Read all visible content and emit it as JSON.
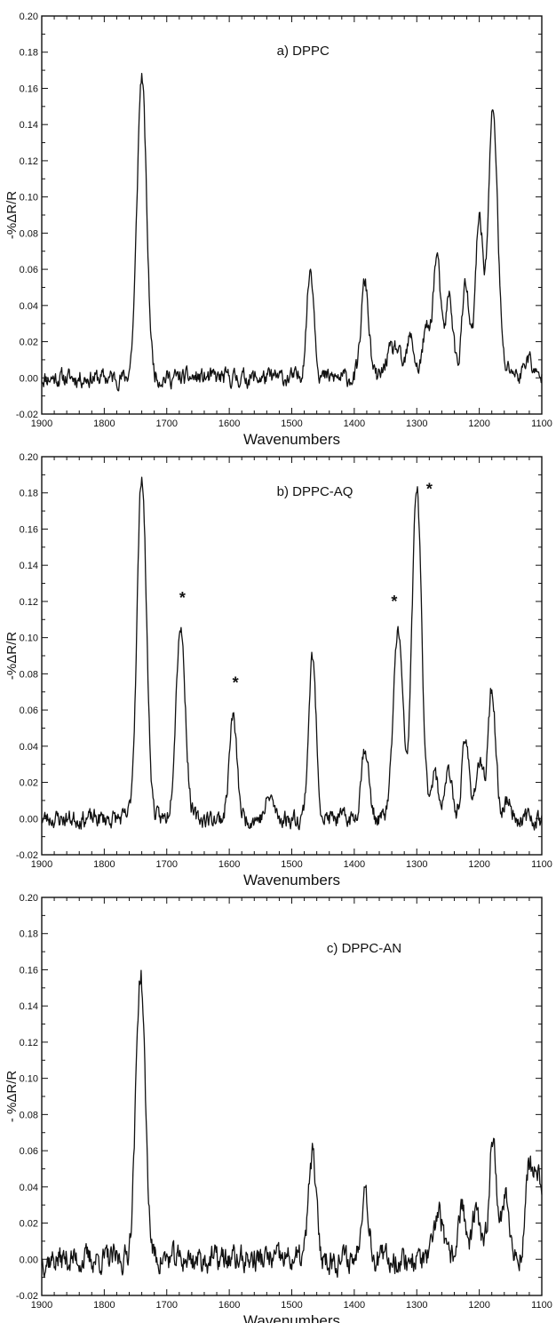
{
  "chart_data": [
    {
      "type": "line",
      "title": "a) DPPC",
      "xlabel": "Wavenumbers",
      "ylabel": "-%ΔR/R",
      "xlim": [
        1900,
        1100
      ],
      "ylim": [
        -0.02,
        0.2
      ],
      "xticks": [
        "1900",
        "1800",
        "1700",
        "1600",
        "1500",
        "1400",
        "1300",
        "1200",
        "1100"
      ],
      "yticks": [
        "-0.02",
        "0.00",
        "0.02",
        "0.04",
        "0.06",
        "0.08",
        "0.10",
        "0.12",
        "0.14",
        "0.16",
        "0.18",
        "0.20"
      ],
      "annotations": [],
      "series": [
        {
          "peaks": [
            [
              1740,
              0.167
            ],
            [
              1470,
              0.06
            ],
            [
              1383,
              0.053
            ],
            [
              1345,
              0.012
            ],
            [
              1332,
              0.015
            ],
            [
              1310,
              0.022
            ],
            [
              1285,
              0.026
            ],
            [
              1268,
              0.067
            ],
            [
              1248,
              0.045
            ],
            [
              1222,
              0.05
            ],
            [
              1200,
              0.088
            ],
            [
              1178,
              0.148
            ],
            [
              1150,
              0.005
            ],
            [
              1122,
              0.012
            ]
          ],
          "noise": 0.004,
          "seed": 11
        }
      ]
    },
    {
      "type": "line",
      "title": "b)  DPPC-AQ",
      "xlabel": "Wavenumbers",
      "ylabel": "-%ΔR/R",
      "xlim": [
        1900,
        1100
      ],
      "ylim": [
        -0.02,
        0.2
      ],
      "xticks": [
        "1900",
        "1800",
        "1700",
        "1600",
        "1500",
        "1400",
        "1300",
        "1200",
        "1100"
      ],
      "yticks": [
        "-0.02",
        "0.00",
        "0.02",
        "0.04",
        "0.06",
        "0.08",
        "0.10",
        "0.12",
        "0.14",
        "0.16",
        "0.18",
        "0.20"
      ],
      "annotations": [
        {
          "text": "*",
          "x": 1675,
          "y": 0.122
        },
        {
          "text": "*",
          "x": 1590,
          "y": 0.075
        },
        {
          "text": "*",
          "x": 1336,
          "y": 0.12
        },
        {
          "text": "*",
          "x": 1280,
          "y": 0.182
        }
      ],
      "series": [
        {
          "peaks": [
            [
              1740,
              0.19
            ],
            [
              1678,
              0.107
            ],
            [
              1594,
              0.056
            ],
            [
              1535,
              0.012
            ],
            [
              1467,
              0.089
            ],
            [
              1383,
              0.04
            ],
            [
              1330,
              0.104
            ],
            [
              1300,
              0.183
            ],
            [
              1272,
              0.025
            ],
            [
              1250,
              0.025
            ],
            [
              1222,
              0.042
            ],
            [
              1200,
              0.03
            ],
            [
              1180,
              0.072
            ],
            [
              1155,
              0.01
            ]
          ],
          "noise": 0.004,
          "seed": 23
        }
      ]
    },
    {
      "type": "line",
      "title": "c) DPPC-AN",
      "xlabel": "Wavenumbers",
      "ylabel": "- %ΔR/R",
      "xlim": [
        1900,
        1100
      ],
      "ylim": [
        -0.02,
        0.2
      ],
      "xticks": [
        "1900",
        "1800",
        "1700",
        "1600",
        "1500",
        "1400",
        "1300",
        "1200",
        "1100"
      ],
      "yticks": [
        "-0.02",
        "0.00",
        "0.02",
        "0.04",
        "0.06",
        "0.08",
        "0.10",
        "0.12",
        "0.14",
        "0.16",
        "0.18",
        "0.20"
      ],
      "annotations": [],
      "series": [
        {
          "peaks": [
            [
              1742,
              0.158
            ],
            [
              1467,
              0.058
            ],
            [
              1383,
              0.04
            ],
            [
              1265,
              0.028
            ],
            [
              1228,
              0.03
            ],
            [
              1205,
              0.025
            ],
            [
              1178,
              0.068
            ],
            [
              1158,
              0.035
            ],
            [
              1120,
              0.05
            ],
            [
              1106,
              0.045
            ]
          ],
          "noise": 0.006,
          "seed": 37
        }
      ]
    }
  ]
}
